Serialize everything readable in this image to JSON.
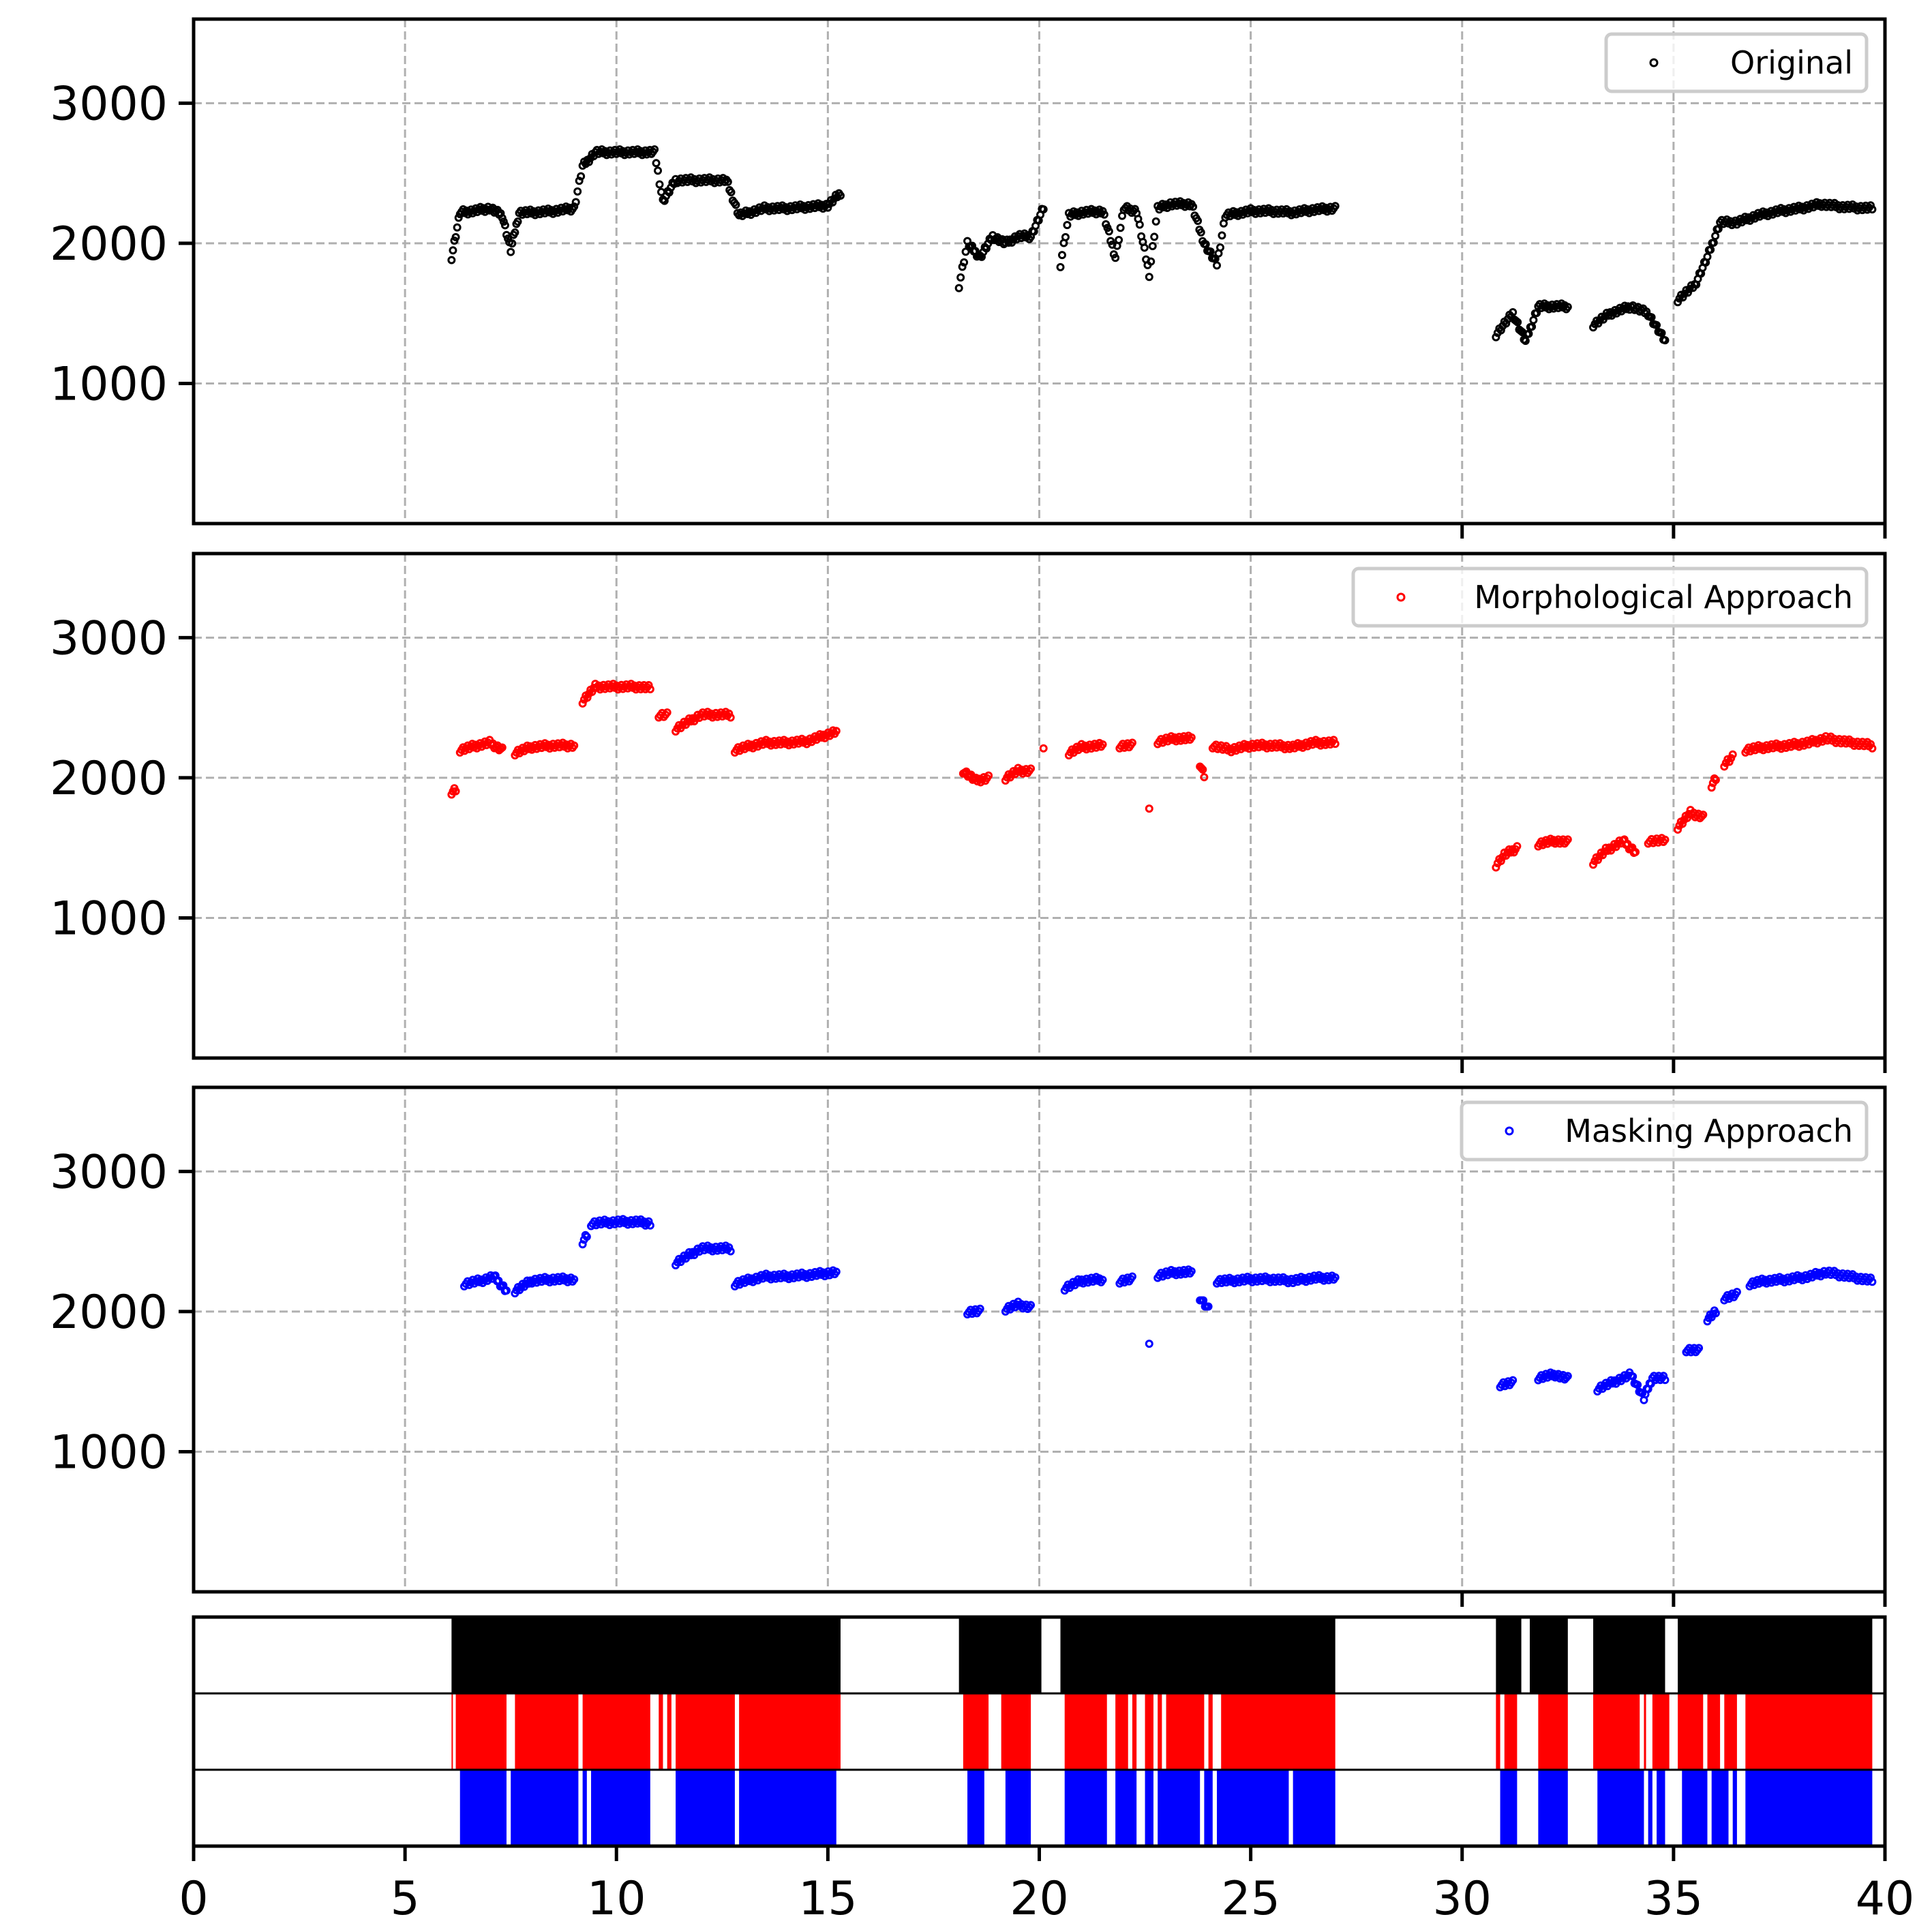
{
  "chart_data": [
    {
      "type": "scatter",
      "legend": "Original",
      "legend_location": "upper right",
      "color": "#000000",
      "marker": "hollow circle",
      "xlim": [
        0,
        40
      ],
      "ylim": [
        0,
        3600
      ],
      "yticks": [
        1000,
        2000,
        3000
      ],
      "xticks": [
        0,
        5,
        10,
        15,
        20,
        25,
        30,
        35,
        40
      ],
      "grid": true,
      "segments": [
        {
          "x": [
            6.1,
            6.3,
            6.6,
            7.0,
            7.3,
            7.5,
            7.7,
            8.0,
            8.5,
            9.0,
            9.2,
            9.5,
            10.0,
            10.5,
            10.9,
            11.1,
            11.4,
            12.0,
            12.6,
            12.9,
            13.5,
            14.0,
            14.5,
            15.0,
            15.3
          ],
          "y": [
            1900,
            2220,
            2230,
            2250,
            2200,
            1950,
            2220,
            2220,
            2230,
            2250,
            2550,
            2650,
            2650,
            2650,
            2650,
            2300,
            2450,
            2450,
            2450,
            2200,
            2250,
            2250,
            2260,
            2270,
            2360
          ]
        },
        {
          "x": [
            18.1,
            18.3,
            18.6,
            18.9,
            19.2,
            19.5,
            19.8,
            20.1
          ],
          "y": [
            1700,
            2000,
            1900,
            2050,
            2000,
            2050,
            2050,
            2250
          ]
        },
        {
          "x": [
            20.5,
            20.7,
            21.0,
            21.5,
            21.8,
            22.0,
            22.3,
            22.6,
            22.8,
            23.1,
            23.6,
            23.9,
            24.2,
            24.4,
            25.0,
            25.5,
            26.0,
            26.5,
            27.0
          ],
          "y": [
            1850,
            2200,
            2220,
            2230,
            1900,
            2250,
            2230,
            1780,
            2250,
            2280,
            2280,
            2000,
            1850,
            2200,
            2230,
            2230,
            2220,
            2240,
            2250
          ]
        },
        {
          "x": [
            30.8,
            31.2,
            31.5,
            31.8,
            32.2,
            32.5
          ],
          "y": [
            1350,
            1500,
            1300,
            1550,
            1550,
            1550
          ]
        },
        {
          "x": [
            33.1,
            33.5,
            34.0,
            34.4,
            34.8
          ],
          "y": [
            1420,
            1500,
            1550,
            1500,
            1300
          ]
        },
        {
          "x": [
            35.1,
            35.5,
            35.8,
            36.1,
            36.5,
            37.0,
            37.5,
            38.0,
            38.5,
            39.0,
            39.7
          ],
          "y": [
            1600,
            1700,
            1900,
            2150,
            2150,
            2200,
            2230,
            2250,
            2280,
            2260,
            2250
          ]
        }
      ]
    },
    {
      "type": "scatter",
      "legend": "Morphological Approach",
      "legend_location": "upper right",
      "color": "#ff0000",
      "marker": "hollow circle",
      "xlim": [
        0,
        40
      ],
      "ylim": [
        0,
        3600
      ],
      "yticks": [
        1000,
        2000,
        3000
      ],
      "xticks": [
        0,
        5,
        10,
        15,
        20,
        25,
        30,
        35,
        40
      ],
      "grid": true,
      "segments": [
        {
          "x": [
            6.1,
            6.2
          ],
          "y": [
            1900,
            1920
          ]
        },
        {
          "x": [
            6.3,
            6.7,
            7.0,
            7.3
          ],
          "y": [
            2200,
            2230,
            2250,
            2200
          ]
        },
        {
          "x": [
            7.6,
            8.0,
            8.5,
            9.0
          ],
          "y": [
            2180,
            2220,
            2230,
            2230
          ]
        },
        {
          "x": [
            9.2,
            9.5,
            10.0,
            10.5,
            10.8
          ],
          "y": [
            2550,
            2650,
            2650,
            2650,
            2640
          ]
        },
        {
          "x": [
            11.0,
            11.2
          ],
          "y": [
            2450,
            2450
          ]
        },
        {
          "x": [
            11.4,
            12.0,
            12.7
          ],
          "y": [
            2350,
            2450,
            2450
          ]
        },
        {
          "x": [
            12.8,
            13.5,
            14.0,
            14.5,
            15.2
          ],
          "y": [
            2200,
            2250,
            2250,
            2260,
            2330
          ]
        },
        {
          "x": [
            18.2,
            18.5,
            18.8
          ],
          "y": [
            2050,
            1980,
            2000
          ]
        },
        {
          "x": [
            19.2,
            19.5,
            19.8
          ],
          "y": [
            2000,
            2050,
            2050
          ]
        },
        {
          "x": [
            20.1
          ],
          "y": [
            2230
          ]
        },
        {
          "x": [
            20.7,
            21.0,
            21.5
          ],
          "y": [
            2180,
            2220,
            2230
          ]
        },
        {
          "x": [
            21.9,
            22.2
          ],
          "y": [
            2230,
            2230
          ]
        },
        {
          "x": [
            22.6
          ],
          "y": [
            1800
          ]
        },
        {
          "x": [
            22.8,
            23.2,
            23.6
          ],
          "y": [
            2260,
            2280,
            2280
          ]
        },
        {
          "x": [
            23.8,
            23.9
          ],
          "y": [
            2100,
            2020
          ]
        },
        {
          "x": [
            24.1,
            24.5,
            25.0,
            25.5,
            26.0,
            26.5,
            27.0
          ],
          "y": [
            2230,
            2200,
            2230,
            2230,
            2220,
            2250,
            2250
          ]
        },
        {
          "x": [
            30.8,
            31.0,
            31.3
          ],
          "y": [
            1380,
            1450,
            1500
          ]
        },
        {
          "x": [
            31.8,
            32.2,
            32.5
          ],
          "y": [
            1530,
            1550,
            1540
          ]
        },
        {
          "x": [
            33.1,
            33.4,
            33.8,
            34.1
          ],
          "y": [
            1400,
            1480,
            1550,
            1470
          ]
        },
        {
          "x": [
            34.4,
            34.8
          ],
          "y": [
            1550,
            1550
          ]
        },
        {
          "x": [
            35.1,
            35.4,
            35.7
          ],
          "y": [
            1650,
            1750,
            1720
          ]
        },
        {
          "x": [
            35.9,
            36.0
          ],
          "y": [
            1950,
            2000
          ]
        },
        {
          "x": [
            36.2,
            36.4
          ],
          "y": [
            2100,
            2150
          ]
        },
        {
          "x": [
            36.7,
            37.2,
            37.7,
            38.2,
            38.6,
            39.0,
            39.7
          ],
          "y": [
            2200,
            2220,
            2230,
            2250,
            2280,
            2260,
            2230
          ]
        }
      ]
    },
    {
      "type": "scatter",
      "legend": "Masking Approach",
      "legend_location": "upper right",
      "color": "#0000ff",
      "marker": "hollow circle",
      "xlim": [
        0,
        40
      ],
      "ylim": [
        0,
        3600
      ],
      "yticks": [
        1000,
        2000,
        3000
      ],
      "xticks": [
        0,
        5,
        10,
        15,
        20,
        25,
        30,
        35,
        40
      ],
      "grid": true,
      "segments": [
        {
          "x": [
            6.4,
            6.8,
            7.1,
            7.4
          ],
          "y": [
            2200,
            2220,
            2250,
            2150
          ]
        },
        {
          "x": [
            7.6,
            8.0,
            8.5,
            9.0
          ],
          "y": [
            2150,
            2220,
            2230,
            2230
          ]
        },
        {
          "x": [
            9.2,
            9.3
          ],
          "y": [
            2500,
            2550
          ]
        },
        {
          "x": [
            9.4,
            10.0,
            10.5,
            10.8
          ],
          "y": [
            2630,
            2640,
            2640,
            2630
          ]
        },
        {
          "x": [
            11.4,
            12.0,
            12.7
          ],
          "y": [
            2350,
            2450,
            2450
          ]
        },
        {
          "x": [
            12.8,
            13.5,
            14.0,
            14.5,
            15.2
          ],
          "y": [
            2200,
            2250,
            2250,
            2260,
            2280
          ]
        },
        {
          "x": [
            18.3,
            18.6
          ],
          "y": [
            2000,
            2000
          ]
        },
        {
          "x": [
            19.2,
            19.5,
            19.8
          ],
          "y": [
            2020,
            2050,
            2030
          ]
        },
        {
          "x": [
            20.6,
            21.0,
            21.5
          ],
          "y": [
            2170,
            2220,
            2230
          ]
        },
        {
          "x": [
            21.9,
            22.2
          ],
          "y": [
            2220,
            2230
          ]
        },
        {
          "x": [
            22.6
          ],
          "y": [
            1790
          ]
        },
        {
          "x": [
            22.8,
            23.2,
            23.6
          ],
          "y": [
            2260,
            2280,
            2280
          ]
        },
        {
          "x": [
            23.8,
            24.0
          ],
          "y": [
            2100,
            2020
          ]
        },
        {
          "x": [
            24.2,
            24.5,
            25.0,
            25.5,
            26.0,
            26.5,
            27.0
          ],
          "y": [
            2220,
            2220,
            2230,
            2230,
            2220,
            2240,
            2240
          ]
        },
        {
          "x": [
            30.9,
            31.2
          ],
          "y": [
            1480,
            1490
          ]
        },
        {
          "x": [
            31.8,
            32.2,
            32.5
          ],
          "y": [
            1530,
            1550,
            1520
          ]
        },
        {
          "x": [
            33.2,
            33.6,
            34.0,
            34.3,
            34.5,
            34.8
          ],
          "y": [
            1450,
            1500,
            1550,
            1380,
            1530,
            1520
          ]
        },
        {
          "x": [
            35.3,
            35.6
          ],
          "y": [
            1730,
            1720
          ]
        },
        {
          "x": [
            35.8,
            36.0
          ],
          "y": [
            1950,
            2000
          ]
        },
        {
          "x": [
            36.2,
            36.5
          ],
          "y": [
            2100,
            2120
          ]
        },
        {
          "x": [
            36.8,
            37.2,
            37.7,
            38.2,
            38.6,
            39.0,
            39.7
          ],
          "y": [
            2200,
            2220,
            2230,
            2250,
            2280,
            2260,
            2220
          ]
        }
      ]
    },
    {
      "type": "coverage-strip",
      "rows": [
        {
          "color": "#000000",
          "intervals": [
            [
              6.1,
              15.3
            ],
            [
              18.1,
              20.05
            ],
            [
              20.5,
              27.0
            ],
            [
              30.8,
              31.4
            ],
            [
              31.6,
              32.5
            ],
            [
              33.1,
              34.8
            ],
            [
              35.1,
              39.7
            ]
          ]
        },
        {
          "color": "#ff0000",
          "intervals": [
            [
              6.1,
              6.12
            ],
            [
              6.2,
              7.4
            ],
            [
              7.6,
              9.1
            ],
            [
              9.2,
              10.8
            ],
            [
              11.0,
              11.1
            ],
            [
              11.2,
              11.3
            ],
            [
              11.4,
              12.8
            ],
            [
              12.9,
              15.3
            ],
            [
              18.2,
              18.8
            ],
            [
              19.1,
              19.8
            ],
            [
              20.6,
              21.6
            ],
            [
              21.8,
              22.1
            ],
            [
              22.2,
              22.3
            ],
            [
              22.5,
              22.7
            ],
            [
              22.8,
              22.9
            ],
            [
              23.0,
              23.9
            ],
            [
              24.0,
              24.1
            ],
            [
              24.3,
              27.0
            ],
            [
              30.8,
              30.9
            ],
            [
              31.0,
              31.3
            ],
            [
              31.8,
              32.5
            ],
            [
              33.1,
              34.2
            ],
            [
              34.3,
              34.35
            ],
            [
              34.5,
              34.9
            ],
            [
              35.1,
              35.7
            ],
            [
              35.8,
              36.1
            ],
            [
              36.2,
              36.5
            ],
            [
              36.7,
              39.7
            ]
          ]
        },
        {
          "color": "#0000ff",
          "intervals": [
            [
              6.3,
              7.4
            ],
            [
              7.5,
              9.1
            ],
            [
              9.2,
              9.3
            ],
            [
              9.4,
              10.8
            ],
            [
              11.4,
              12.8
            ],
            [
              12.9,
              15.2
            ],
            [
              18.3,
              18.7
            ],
            [
              19.2,
              19.8
            ],
            [
              20.6,
              21.6
            ],
            [
              21.8,
              22.3
            ],
            [
              22.5,
              22.7
            ],
            [
              22.8,
              23.8
            ],
            [
              23.9,
              24.1
            ],
            [
              24.2,
              25.9
            ],
            [
              26.0,
              27.0
            ],
            [
              30.9,
              31.3
            ],
            [
              31.8,
              32.5
            ],
            [
              33.2,
              34.3
            ],
            [
              34.4,
              34.5
            ],
            [
              34.6,
              34.8
            ],
            [
              35.2,
              35.8
            ],
            [
              35.9,
              36.3
            ],
            [
              36.4,
              36.5
            ],
            [
              36.7,
              39.7
            ]
          ]
        }
      ]
    }
  ]
}
